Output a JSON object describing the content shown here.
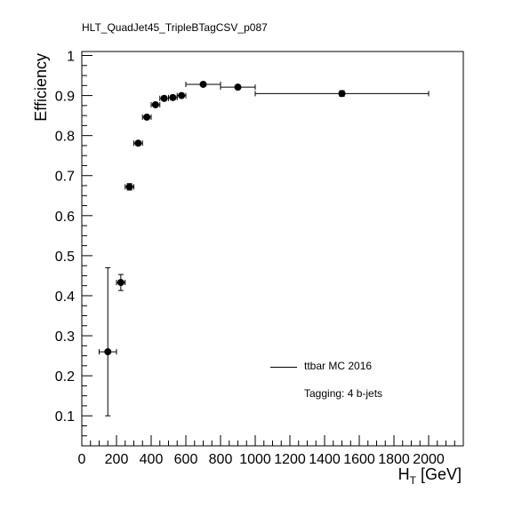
{
  "chart_data": {
    "type": "scatter",
    "title": "HLT_QuadJet45_TripleBTagCSV_p087",
    "xlabel": "H",
    "xlabel_sub": "T",
    "xlabel_unit": "[GeV]",
    "ylabel": "Efficiency",
    "xlim": [
      0,
      2200
    ],
    "ylim": [
      0.025,
      1.01
    ],
    "x_ticks": [
      0,
      200,
      400,
      600,
      800,
      1000,
      1200,
      1400,
      1600,
      1800,
      2000
    ],
    "x_tick_labels": [
      "0",
      "200",
      "400",
      "600",
      "800",
      "1000",
      "1200",
      "1400",
      "1600",
      "1800",
      "2000"
    ],
    "y_ticks": [
      0.1,
      0.2,
      0.3,
      0.4,
      0.5,
      0.6,
      0.7,
      0.8,
      0.9,
      1.0
    ],
    "y_tick_labels": [
      "0.1",
      "0.2",
      "0.3",
      "0.4",
      "0.5",
      "0.6",
      "0.7",
      "0.8",
      "0.9",
      "1"
    ],
    "grid": false,
    "legend_position": "lower-right",
    "series": [
      {
        "name": "ttbar MC 2016",
        "color": "#000000",
        "points": [
          {
            "x": 150,
            "y": 0.26,
            "xerr": 50,
            "yerr_low": 0.16,
            "yerr_high": 0.21
          },
          {
            "x": 225,
            "y": 0.433,
            "xerr": 25,
            "yerr_low": 0.02,
            "yerr_high": 0.02
          },
          {
            "x": 275,
            "y": 0.672,
            "xerr": 25,
            "yerr_low": 0.008,
            "yerr_high": 0.008
          },
          {
            "x": 325,
            "y": 0.781,
            "xerr": 25,
            "yerr_low": 0.005,
            "yerr_high": 0.005
          },
          {
            "x": 375,
            "y": 0.846,
            "xerr": 25,
            "yerr_low": 0.004,
            "yerr_high": 0.004
          },
          {
            "x": 425,
            "y": 0.877,
            "xerr": 25,
            "yerr_low": 0.004,
            "yerr_high": 0.004
          },
          {
            "x": 475,
            "y": 0.893,
            "xerr": 25,
            "yerr_low": 0.004,
            "yerr_high": 0.004
          },
          {
            "x": 525,
            "y": 0.895,
            "xerr": 25,
            "yerr_low": 0.004,
            "yerr_high": 0.004
          },
          {
            "x": 575,
            "y": 0.9,
            "xerr": 25,
            "yerr_low": 0.004,
            "yerr_high": 0.004
          },
          {
            "x": 700,
            "y": 0.928,
            "xerr": 100,
            "yerr_low": 0.003,
            "yerr_high": 0.003
          },
          {
            "x": 900,
            "y": 0.921,
            "xerr": 100,
            "yerr_low": 0.004,
            "yerr_high": 0.004
          },
          {
            "x": 1500,
            "y": 0.905,
            "xerr": 500,
            "yerr_low": 0.007,
            "yerr_high": 0.007
          }
        ]
      }
    ],
    "legend": {
      "label": "ttbar MC 2016",
      "note": "Tagging: 4 b-jets"
    }
  }
}
